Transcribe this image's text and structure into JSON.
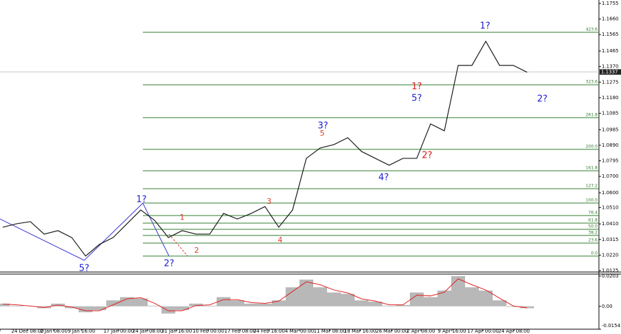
{
  "chart_data": [
    {
      "type": "line",
      "x_labels": [
        "6:00",
        "24 Dec 08:00",
        "2 Jan 08:00",
        "9 Jan 16:00",
        "17 Jan 00:00",
        "24 Jan 08:00",
        "31 Jan 16:00",
        "10 Feb 00:00",
        "17 Feb 08:00",
        "24 Feb 16:00",
        "4 Mar 00:00",
        "11 Mar 08:00",
        "18 Mar 16:00",
        "26 Mar 00:00",
        "2 Apr 08:00",
        "9 Apr 16:00",
        "17 Apr 00:00",
        "24 Apr 08:00"
      ],
      "series": [
        {
          "color": "#1a1a1a",
          "values": [
            1.039,
            1.0411,
            1.0424,
            1.0348,
            1.0369,
            1.0327,
            1.0214,
            1.0285,
            1.0327,
            1.0411,
            1.0495,
            1.0432,
            1.0327,
            1.0369,
            1.0348,
            1.0348,
            1.0474,
            1.044,
            1.0474,
            1.0516,
            1.039,
            1.0495,
            1.081,
            1.0873,
            1.0894,
            1.0936,
            1.0852,
            1.081,
            1.0768,
            1.081,
            1.081,
            1.102,
            1.0978,
            1.1377,
            1.1377,
            1.1524,
            1.1377,
            1.1377,
            1.1335
          ]
        }
      ],
      "ylim": [
        1.0125,
        1.1755
      ],
      "yticks": [
        1.1755,
        {
          "value": 1.166,
          "label": "1.1660"
        },
        1.1565,
        1.1465,
        {
          "value": 1.137,
          "label": "1.1370"
        },
        1.1275,
        {
          "value": 1.118,
          "label": "1.1180"
        },
        1.1085,
        1.0985,
        {
          "value": 1.089,
          "label": "1.0890"
        },
        1.0795,
        {
          "value": 1.07,
          "label": "1.0700"
        },
        {
          "value": 1.06,
          "label": "1.0600"
        },
        {
          "value": 1.051,
          "label": "1.0510"
        },
        {
          "value": 1.041,
          "label": "1.0410"
        },
        1.0315,
        {
          "value": 1.022,
          "label": "1.0220"
        },
        1.0125
      ],
      "current_price": 1.1337,
      "fib_color": "#2f7d2f",
      "fib_levels": [
        {
          "value": 1.1579,
          "label": "423.6"
        },
        {
          "value": 1.1259,
          "label": "323.6"
        },
        {
          "value": 1.1058,
          "label": "261.8"
        },
        {
          "value": 1.0865,
          "label": "200.0"
        },
        {
          "value": 1.0734,
          "label": "161.8"
        },
        {
          "value": 1.0625,
          "label": "127.2"
        },
        {
          "value": 1.0537,
          "label": "100.0"
        },
        {
          "value": 1.0461,
          "label": "76.4"
        },
        {
          "value": 1.0415,
          "label": "61.8"
        },
        {
          "value": 1.0377,
          "label": "50.0"
        },
        {
          "value": 1.034,
          "label": "38.2"
        },
        {
          "value": 1.0293,
          "label": "23.6"
        },
        {
          "value": 1.0214,
          "label": "0.0"
        }
      ],
      "annotations": [
        {
          "text": "1?",
          "color": "#1c1cd0"
        },
        {
          "text": "5?",
          "color": "#1c1cd0"
        },
        {
          "text": "2?",
          "color": "#1c1cd0"
        },
        {
          "text": "1",
          "color": "#e03a2a"
        },
        {
          "text": "2",
          "color": "#e03a2a"
        },
        {
          "text": "3",
          "color": "#e03a2a"
        },
        {
          "text": "4",
          "color": "#e03a2a"
        },
        {
          "text": "5",
          "color": "#e03a2a"
        },
        {
          "text": "3?",
          "color": "#1c1cd0"
        },
        {
          "text": "4?",
          "color": "#1c1cd0"
        },
        {
          "text": "5?",
          "color": "#1c1cd0"
        },
        {
          "text": "1?",
          "color": "#d81818"
        },
        {
          "text": "2?",
          "color": "#d81818"
        },
        {
          "text": "1?",
          "color": "#1c1cd0"
        },
        {
          "text": "2?",
          "color": "#1c1cd0"
        }
      ]
    },
    {
      "type": "bar",
      "series": [
        {
          "color": "#b8b8b8",
          "values": [
            0.0018,
            0.0004,
            0,
            -0.0013,
            0.0018,
            -0.0013,
            -0.004,
            -0.0026,
            0.004,
            0.0062,
            0.0053,
            0.0004,
            -0.0049,
            -0.0026,
            0.0018,
            0.0004,
            0.0062,
            0.004,
            0.0018,
            0.0018,
            0.004,
            0.0128,
            0.018,
            0.0128,
            0.0093,
            0.0084,
            0.004,
            0.0031,
            0.0004,
            0.0009,
            0.0093,
            0.0062,
            0.0106,
            0.0203,
            0.0128,
            0.0106,
            0.004,
            -0.0004,
            -0.0013
          ]
        },
        {
          "color": "#e02020",
          "values": [
            0.0015,
            0.001,
            0.0002,
            -0.0008,
            0.0008,
            -0.0005,
            -0.003,
            -0.003,
            0.001,
            0.005,
            0.0058,
            0.002,
            -0.003,
            -0.003,
            0.0005,
            0.001,
            0.0045,
            0.0045,
            0.0025,
            0.002,
            0.0035,
            0.01,
            0.0165,
            0.0145,
            0.011,
            0.009,
            0.005,
            0.0035,
            0.001,
            0.001,
            0.0075,
            0.007,
            0.0095,
            0.0185,
            0.0145,
            0.011,
            0.0055,
            0.0002,
            -0.001
          ]
        }
      ],
      "ylim": [
        -0.0154,
        0.0203
      ],
      "yticks": [
        0.0203,
        {
          "value": 0,
          "label": "0.00"
        },
        -0.0154
      ]
    }
  ]
}
